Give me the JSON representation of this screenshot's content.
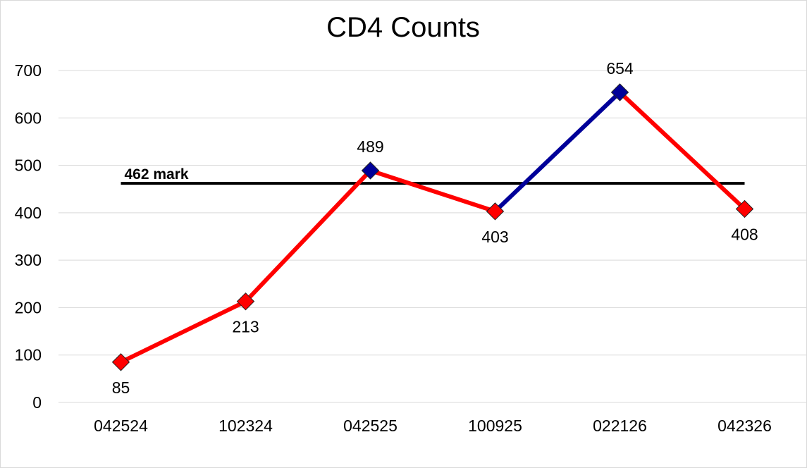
{
  "chart_data": {
    "type": "line",
    "title": "CD4 Counts",
    "categories": [
      "042524",
      "102324",
      "042525",
      "100925",
      "022126",
      "042326"
    ],
    "series": [
      {
        "values": [
          85,
          213,
          489,
          403,
          654,
          408
        ],
        "line_color": "#ff0000",
        "highlight_color": "#000099",
        "segment_colors": [
          "#ff0000",
          "#ff0000",
          "#ff0000",
          "#000099",
          "#ff0000"
        ],
        "marker_colors": [
          "#ff0000",
          "#ff0000",
          "#000099",
          "#ff0000",
          "#000099",
          "#ff0000"
        ],
        "marker": "diamond",
        "data_labels": [
          "85",
          "213",
          "489",
          "403",
          "654",
          "408"
        ],
        "label_positions": [
          "below",
          "below",
          "above",
          "below",
          "above",
          "below"
        ]
      }
    ],
    "reference_line": {
      "value": 462,
      "label": "462 mark",
      "color": "#000000"
    },
    "ylim": [
      0,
      700
    ],
    "yticks": [
      0,
      100,
      200,
      300,
      400,
      500,
      600,
      700
    ],
    "grid": true,
    "legend": "none",
    "xlabel": "",
    "ylabel": ""
  }
}
